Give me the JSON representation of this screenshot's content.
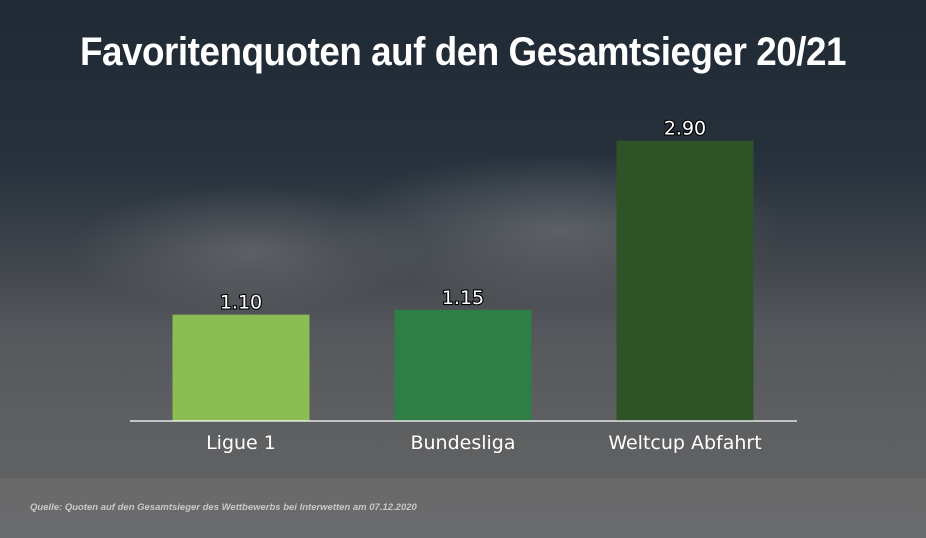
{
  "chart_data": {
    "type": "bar",
    "title": "Favoritenquoten auf den Gesamtsieger 20/21",
    "categories": [
      "Ligue 1",
      "Bundesliga",
      "Weltcup Abfahrt"
    ],
    "values": [
      1.1,
      1.15,
      2.9
    ],
    "value_labels": [
      "1.10",
      "1.15",
      "2.90"
    ],
    "colors": [
      "#8bbd52",
      "#2e7e46",
      "#2d5327"
    ],
    "xlabel": "",
    "ylabel": "",
    "ylim": [
      0,
      3.0
    ],
    "grid": false,
    "legend": "none"
  },
  "source": "Quelle: Quoten auf den Gesamtsieger des Wettbewerbs bei Interwetten am 07.12.2020"
}
